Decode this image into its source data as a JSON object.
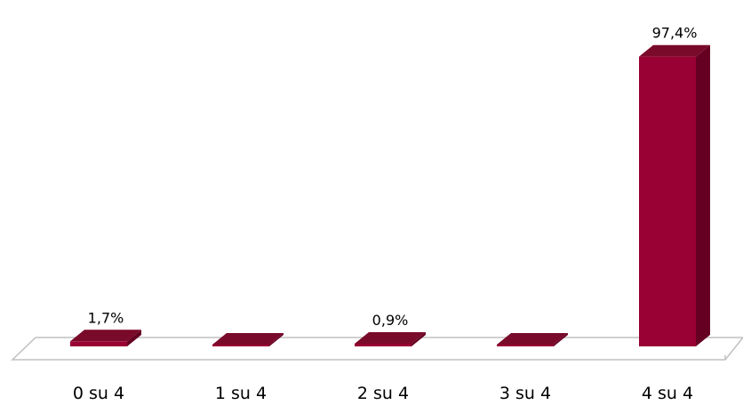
{
  "chart_data": {
    "type": "bar",
    "categories": [
      "0 su 4",
      "1 su 4",
      "2 su 4",
      "3 su 4",
      "4 su 4"
    ],
    "values": [
      1.7,
      0,
      0.9,
      0,
      97.4
    ],
    "data_labels": [
      "1,7%",
      "",
      "0,9%",
      "",
      "97,4%"
    ],
    "value_suffix": "%",
    "ylim": [
      0,
      100
    ],
    "three_d": true,
    "grid": false,
    "legend": "none"
  },
  "colors": {
    "bar_front": "#990033",
    "bar_side": "#660022",
    "bar_top": "#7a0a2a",
    "floor_edge": "#c0c0c0"
  }
}
